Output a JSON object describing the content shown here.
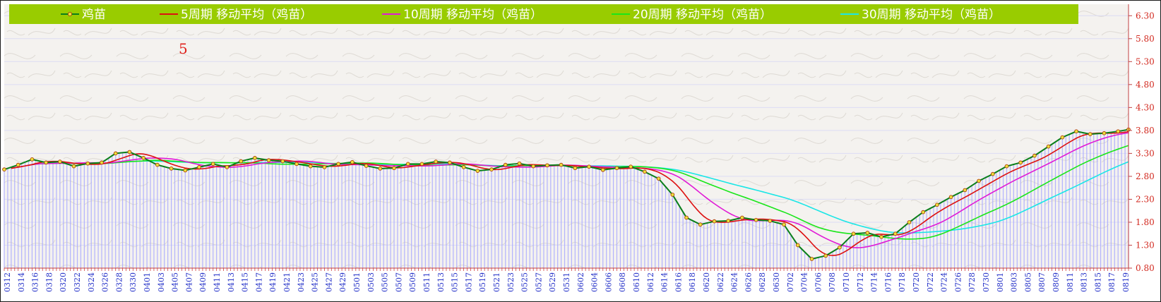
{
  "chart_data": {
    "type": "line",
    "annotation": "5",
    "y_ticks": [
      "6.30",
      "5.80",
      "5.30",
      "4.80",
      "4.30",
      "3.80",
      "3.30",
      "2.80",
      "2.30",
      "1.80",
      "1.30",
      "0.80"
    ],
    "ylim": [
      0.8,
      6.55
    ],
    "x_labels": [
      "0312",
      "0314",
      "0316",
      "0318",
      "0320",
      "0322",
      "0324",
      "0326",
      "0328",
      "0330",
      "0401",
      "0403",
      "0405",
      "0407",
      "0409",
      "0411",
      "0413",
      "0415",
      "0417",
      "0419",
      "0421",
      "0423",
      "0425",
      "0427",
      "0429",
      "0501",
      "0503",
      "0505",
      "0507",
      "0509",
      "0511",
      "0513",
      "0515",
      "0517",
      "0519",
      "0521",
      "0523",
      "0525",
      "0527",
      "0529",
      "0531",
      "0602",
      "0604",
      "0606",
      "0608",
      "0610",
      "0612",
      "0614",
      "0616",
      "0618",
      "0620",
      "0622",
      "0624",
      "0626",
      "0628",
      "0630",
      "0702",
      "0704",
      "0706",
      "0708",
      "0710",
      "0712",
      "0714",
      "0716",
      "0718",
      "0720",
      "0722",
      "0724",
      "0726",
      "0728",
      "0730",
      "0801",
      "0803",
      "0805",
      "0807",
      "0809",
      "0811",
      "0813",
      "0815",
      "0817",
      "0819"
    ],
    "price_keys": [
      [
        0,
        2.95
      ],
      [
        4,
        3.05
      ],
      [
        8,
        3.17
      ],
      [
        12,
        3.1
      ],
      [
        16,
        3.12
      ],
      [
        20,
        3.02
      ],
      [
        24,
        3.08
      ],
      [
        28,
        3.1
      ],
      [
        32,
        3.3
      ],
      [
        36,
        3.33
      ],
      [
        40,
        3.2
      ],
      [
        44,
        3.05
      ],
      [
        48,
        2.97
      ],
      [
        52,
        2.93
      ],
      [
        56,
        3.0
      ],
      [
        60,
        3.07
      ],
      [
        64,
        3.0
      ],
      [
        68,
        3.13
      ],
      [
        72,
        3.2
      ],
      [
        76,
        3.15
      ],
      [
        80,
        3.13
      ],
      [
        84,
        3.07
      ],
      [
        88,
        3.02
      ],
      [
        92,
        3.0
      ],
      [
        96,
        3.07
      ],
      [
        100,
        3.11
      ],
      [
        104,
        3.03
      ],
      [
        108,
        2.97
      ],
      [
        112,
        2.98
      ],
      [
        116,
        3.07
      ],
      [
        120,
        3.07
      ],
      [
        124,
        3.12
      ],
      [
        128,
        3.1
      ],
      [
        132,
        3.0
      ],
      [
        136,
        2.92
      ],
      [
        140,
        2.95
      ],
      [
        144,
        3.05
      ],
      [
        148,
        3.08
      ],
      [
        152,
        3.02
      ],
      [
        156,
        3.04
      ],
      [
        160,
        3.05
      ],
      [
        164,
        2.98
      ],
      [
        168,
        3.01
      ],
      [
        172,
        2.94
      ],
      [
        176,
        2.98
      ],
      [
        180,
        3.01
      ],
      [
        184,
        2.9
      ],
      [
        188,
        2.75
      ],
      [
        192,
        2.4
      ],
      [
        196,
        1.9
      ],
      [
        200,
        1.75
      ],
      [
        204,
        1.82
      ],
      [
        208,
        1.83
      ],
      [
        212,
        1.9
      ],
      [
        216,
        1.85
      ],
      [
        220,
        1.83
      ],
      [
        224,
        1.75
      ],
      [
        228,
        1.3
      ],
      [
        232,
        1.0
      ],
      [
        236,
        1.07
      ],
      [
        240,
        1.25
      ],
      [
        244,
        1.55
      ],
      [
        248,
        1.57
      ],
      [
        252,
        1.48
      ],
      [
        256,
        1.55
      ],
      [
        260,
        1.8
      ],
      [
        264,
        2.02
      ],
      [
        268,
        2.18
      ],
      [
        272,
        2.35
      ],
      [
        276,
        2.5
      ],
      [
        280,
        2.7
      ],
      [
        284,
        2.85
      ],
      [
        288,
        3.02
      ],
      [
        292,
        3.1
      ],
      [
        296,
        3.25
      ],
      [
        300,
        3.45
      ],
      [
        304,
        3.65
      ],
      [
        308,
        3.78
      ],
      [
        312,
        3.72
      ],
      [
        316,
        3.74
      ],
      [
        320,
        3.78
      ],
      [
        323,
        3.82
      ]
    ],
    "marker_step": 4,
    "series": [
      {
        "name": "鸡苗",
        "color": "#0a7f1a",
        "kind": "price"
      },
      {
        "name": "5周期 移动平均（鸡苗）",
        "color": "#dd1010",
        "window": 9
      },
      {
        "name": "10周期 移动平均（鸡苗）",
        "color": "#e01ad6",
        "window": 20
      },
      {
        "name": "20周期 移动平均（鸡苗）",
        "color": "#19e619",
        "window": 40
      },
      {
        "name": "30周期 移动平均（鸡苗）",
        "color": "#1ae6e6",
        "window": 60
      }
    ],
    "legend_position": "top",
    "colors": {
      "legend_bg": "#99cc00",
      "plot_bg": "#f4f2ef",
      "bar": "#a8a8ff",
      "grid": "#dcdcf4",
      "y_tick": "#d2291f",
      "x_tick": "#2330c8"
    }
  }
}
